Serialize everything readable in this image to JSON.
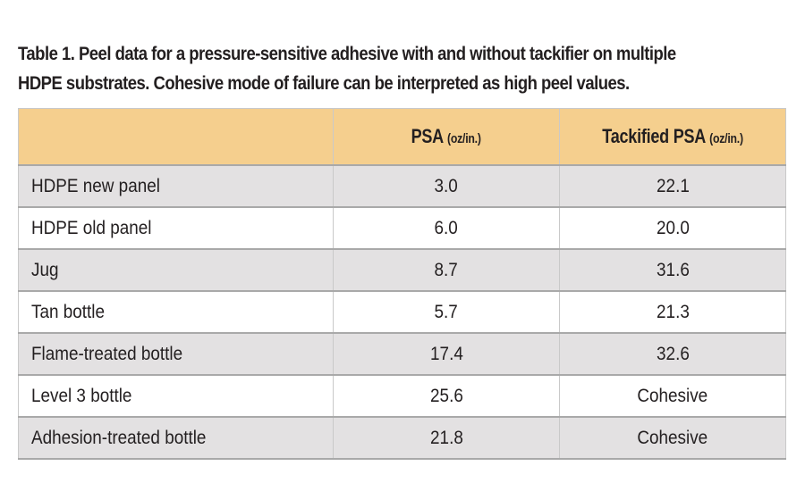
{
  "caption": {
    "line1": "Table 1. Peel data for a pressure-sensitive adhesive with and without tackifier on multiple",
    "line2": "HDPE substrates. Cohesive mode of failure can be interpreted as high peel values."
  },
  "table": {
    "headers": [
      {
        "label": "",
        "unit": ""
      },
      {
        "label": "PSA ",
        "unit": "(oz/in.)"
      },
      {
        "label": "Tackified PSA ",
        "unit": "(oz/in.)"
      }
    ],
    "rows": [
      {
        "substrate": "HDPE new panel",
        "psa": "3.0",
        "tackified": "22.1"
      },
      {
        "substrate": "HDPE old panel",
        "psa": "6.0",
        "tackified": "20.0"
      },
      {
        "substrate": "Jug",
        "psa": "8.7",
        "tackified": "31.6"
      },
      {
        "substrate": "Tan bottle",
        "psa": "5.7",
        "tackified": "21.3"
      },
      {
        "substrate": "Flame-treated bottle",
        "psa": "17.4",
        "tackified": "32.6"
      },
      {
        "substrate": "Level 3 bottle",
        "psa": "25.6",
        "tackified": "Cohesive"
      },
      {
        "substrate": "Adhesion-treated bottle",
        "psa": "21.8",
        "tackified": "Cohesive"
      }
    ]
  },
  "colors": {
    "header_bg": "#f5cf8e",
    "row_shade": "#e3e1e2",
    "text": "#231f20"
  }
}
